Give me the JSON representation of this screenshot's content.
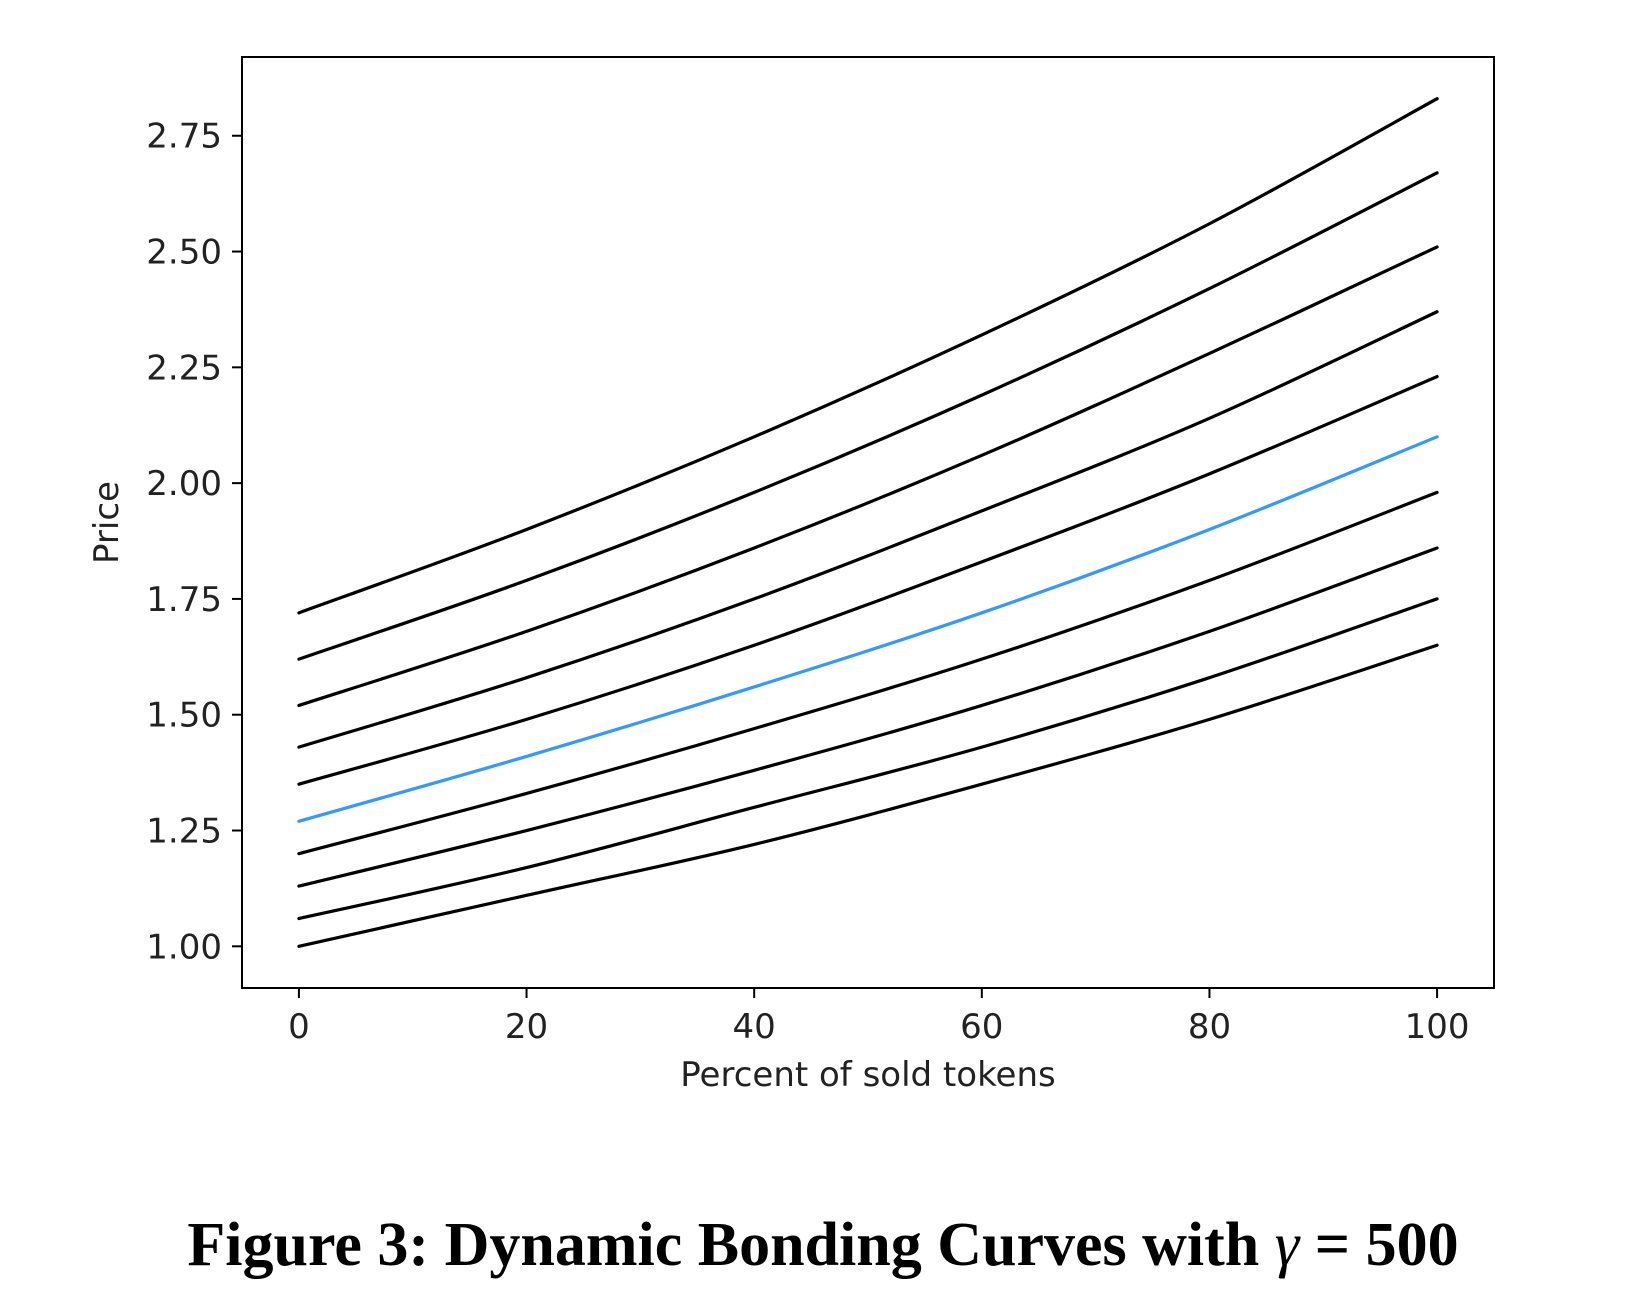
{
  "caption": {
    "prefix": "Figure 3: Dynamic Bonding Curves with ",
    "symbol": "γ",
    "suffix": " = 500"
  },
  "chart_data": {
    "type": "line",
    "title": "",
    "xlabel": "Percent of sold tokens",
    "ylabel": "Price",
    "xlim": [
      -5,
      105
    ],
    "ylim": [
      0.91,
      2.92
    ],
    "xticks": [
      0,
      20,
      40,
      60,
      80,
      100
    ],
    "xtick_labels": [
      "0",
      "20",
      "40",
      "60",
      "80",
      "100"
    ],
    "yticks": [
      1.0,
      1.25,
      1.5,
      1.75,
      2.0,
      2.25,
      2.5,
      2.75
    ],
    "ytick_labels": [
      "1.00",
      "1.25",
      "1.50",
      "1.75",
      "2.00",
      "2.25",
      "2.50",
      "2.75"
    ],
    "grid": false,
    "legend": "none",
    "x": [
      0,
      20,
      40,
      60,
      80,
      100
    ],
    "series": [
      {
        "color": "#000000",
        "values": [
          1.0,
          1.11,
          1.22,
          1.35,
          1.49,
          1.65
        ]
      },
      {
        "color": "#000000",
        "values": [
          1.06,
          1.17,
          1.3,
          1.43,
          1.58,
          1.75
        ]
      },
      {
        "color": "#000000",
        "values": [
          1.13,
          1.25,
          1.38,
          1.52,
          1.68,
          1.86
        ]
      },
      {
        "color": "#000000",
        "values": [
          1.2,
          1.33,
          1.47,
          1.62,
          1.79,
          1.98
        ]
      },
      {
        "color": "#3399ff",
        "values": [
          1.27,
          1.41,
          1.56,
          1.72,
          1.9,
          2.1
        ]
      },
      {
        "color": "#000000",
        "values": [
          1.35,
          1.49,
          1.65,
          1.83,
          2.02,
          2.23
        ]
      },
      {
        "color": "#000000",
        "values": [
          1.43,
          1.58,
          1.75,
          1.94,
          2.14,
          2.37
        ]
      },
      {
        "color": "#000000",
        "values": [
          1.52,
          1.68,
          1.86,
          2.06,
          2.28,
          2.51
        ]
      },
      {
        "color": "#000000",
        "values": [
          1.62,
          1.79,
          1.98,
          2.19,
          2.42,
          2.67
        ]
      },
      {
        "color": "#000000",
        "values": [
          1.72,
          1.9,
          2.1,
          2.32,
          2.56,
          2.83
        ]
      }
    ]
  }
}
